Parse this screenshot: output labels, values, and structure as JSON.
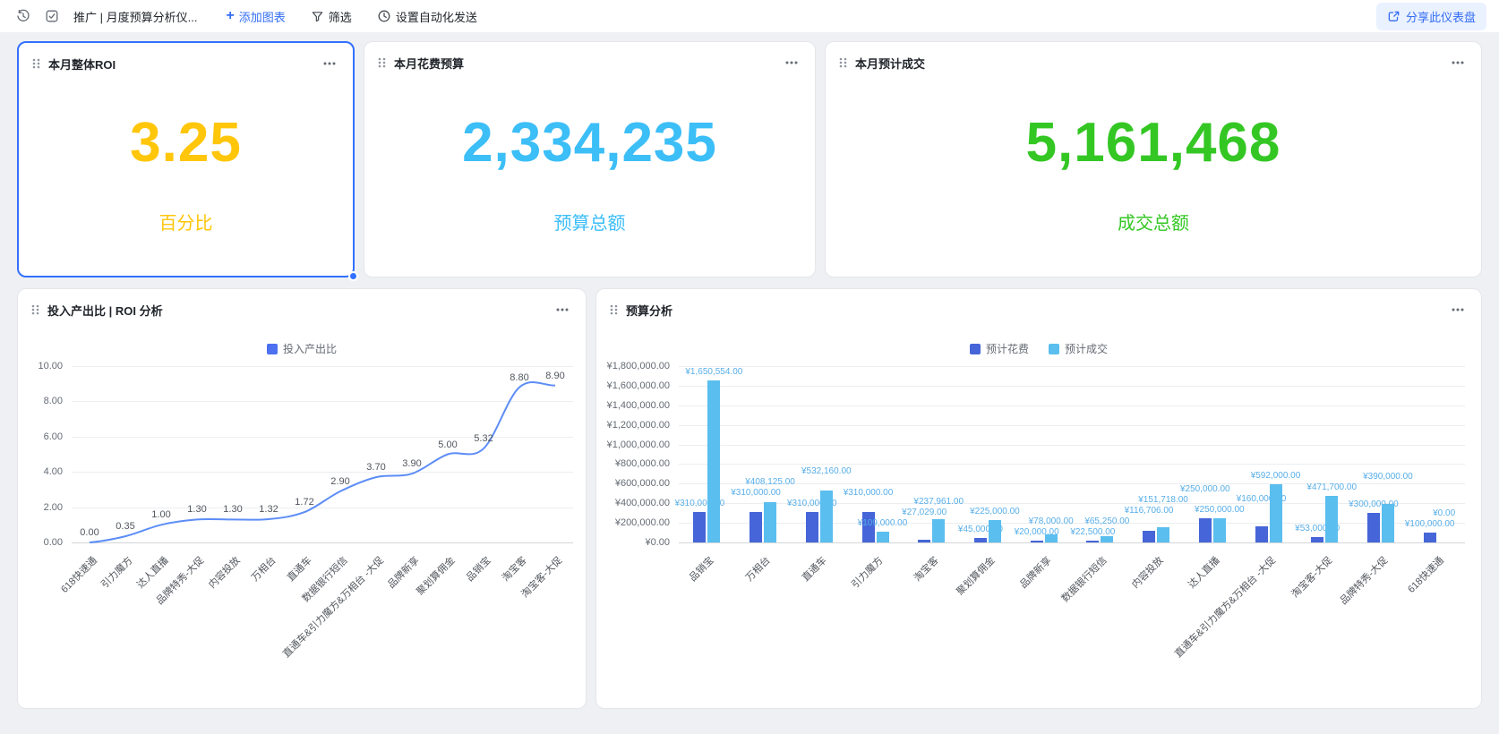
{
  "toolbar": {
    "title": "推广 | 月度预算分析仪...",
    "add_chart_label": "添加图表",
    "filter_label": "筛选",
    "automation_label": "设置自动化发送",
    "share_label": "分享此仪表盘"
  },
  "colors": {
    "accent_blue": "#336DF4",
    "selected_border": "#3370FF",
    "kpi_yellow": "#FFC60A",
    "kpi_sky_blue": "#3CBEF7",
    "kpi_green": "#34C724"
  },
  "kpis": [
    {
      "title": "本月整体ROI",
      "value": "3.25",
      "label": "百分比",
      "color": "#FFC60A"
    },
    {
      "title": "本月花费预算",
      "value": "2,334,235",
      "label": "预算总额",
      "color": "#3CBEF7"
    },
    {
      "title": "本月预计成交",
      "value": "5,161,468",
      "label": "成交总额",
      "color": "#34C724"
    }
  ],
  "chart_data": [
    {
      "type": "line",
      "title": "投入产出比 | ROI 分析",
      "legend": [
        "投入产出比"
      ],
      "legend_position": "top",
      "grid": true,
      "categories": [
        "618快速通",
        "引力魔方",
        "达人直播",
        "品牌特秀-大促",
        "内容投放",
        "万相台",
        "直通车",
        "数据银行短信",
        "直通车&引力魔方&万相台 -大促",
        "品牌新享",
        "聚划算佣金",
        "品销宝",
        "淘宝客",
        "淘宝客-大促"
      ],
      "values": [
        0.0,
        0.35,
        1.0,
        1.3,
        1.3,
        1.32,
        1.72,
        2.9,
        3.7,
        3.9,
        5.0,
        5.32,
        8.8,
        8.9
      ],
      "ylim": [
        0,
        10
      ],
      "ytick_step": 2,
      "line_color": "#5C8DF6",
      "legend_color": "#4C70F0",
      "label_color": "#51565D"
    },
    {
      "type": "bar",
      "title": "预算分析",
      "legend_position": "top",
      "grid": true,
      "categories": [
        "品销宝",
        "万相台",
        "直通车",
        "引力魔方",
        "淘宝客",
        "聚划算佣金",
        "品牌新享",
        "数据银行短信",
        "内容投放",
        "达人直播",
        "直通车&引力魔方&万相台 -大促",
        "淘宝客-大促",
        "品牌特秀-大促",
        "618快速通"
      ],
      "series": [
        {
          "name": "预计花费",
          "color": "#4565D8",
          "values": [
            310000,
            310000,
            310000,
            310000,
            27029,
            45000,
            20000,
            22500,
            116706,
            250000,
            160000,
            53000,
            300000,
            100000
          ]
        },
        {
          "name": "预计成交",
          "color": "#5ABEEF",
          "values": [
            1650554,
            408125,
            532160,
            109000,
            237961,
            225000,
            78000,
            65250,
            151718,
            250000,
            592000,
            471700,
            390000,
            0
          ]
        }
      ],
      "ylim": [
        0,
        1800000
      ],
      "ytick_step": 200000,
      "value_prefix": "¥",
      "value_label_color": "#57AEE8"
    }
  ]
}
